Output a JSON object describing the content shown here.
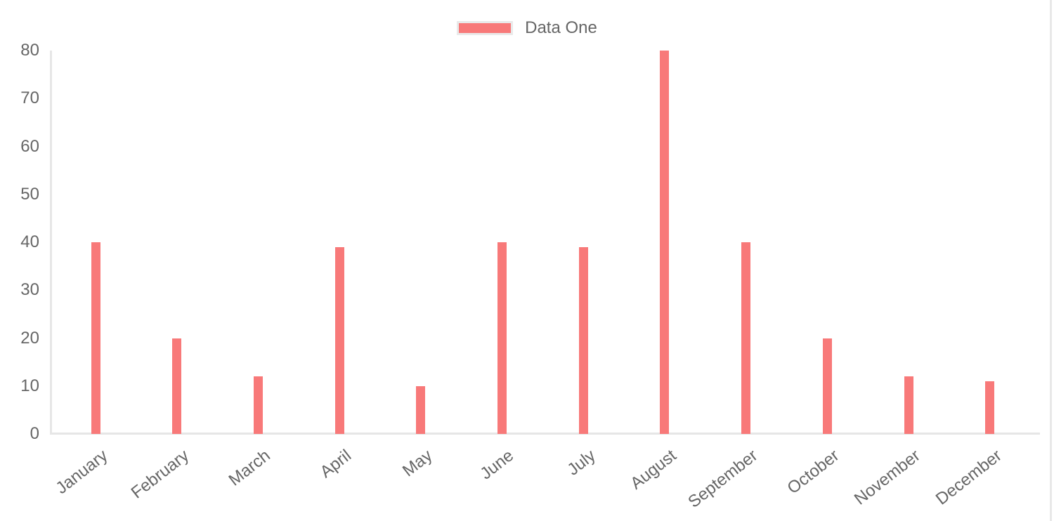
{
  "chart_data": {
    "type": "bar",
    "title": "",
    "categories": [
      "January",
      "February",
      "March",
      "April",
      "May",
      "June",
      "July",
      "August",
      "September",
      "October",
      "November",
      "December"
    ],
    "series": [
      {
        "name": "Data One",
        "color": "#f87979",
        "values": [
          40,
          20,
          12,
          39,
          10,
          40,
          39,
          80,
          40,
          20,
          12,
          11
        ]
      }
    ],
    "xlabel": "",
    "ylabel": "",
    "ylim": [
      0,
      80
    ],
    "y_ticks": [
      0,
      10,
      20,
      30,
      40,
      50,
      60,
      70,
      80
    ],
    "grid": "off",
    "legend": {
      "position": "top",
      "label": "Data One"
    },
    "colors": {
      "bar": "#f87979",
      "tick_label": "#666666",
      "axis_line": "#e6e6e6",
      "legend_swatch_border": "#e9e9e9",
      "right_divider": "#e8e8e8",
      "background": "#ffffff"
    }
  }
}
